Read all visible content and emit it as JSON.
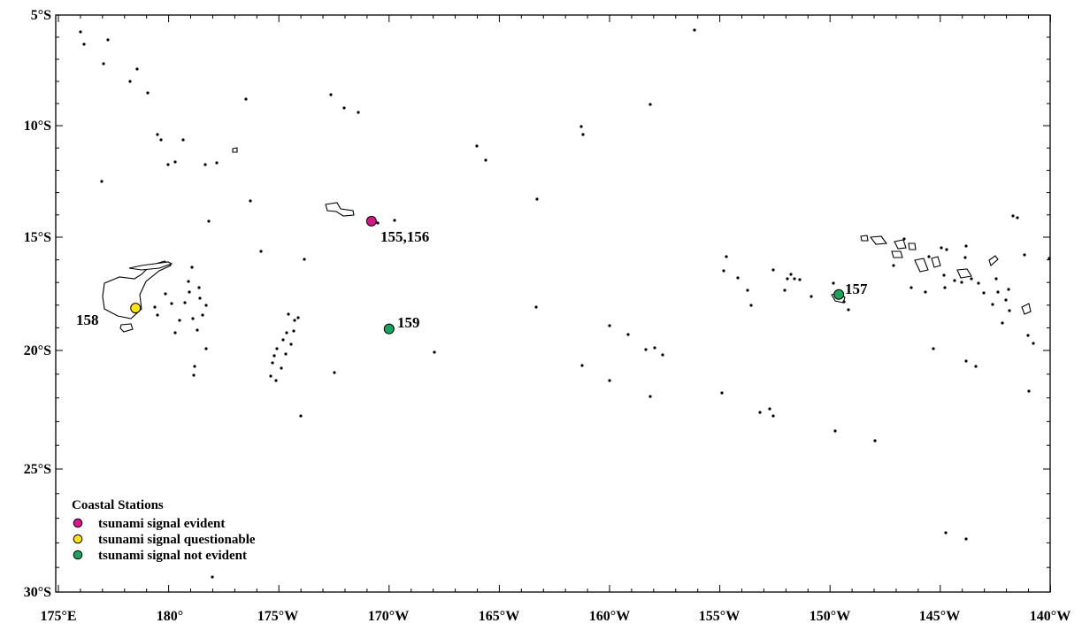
{
  "lat_labels": [
    "5°S",
    "10°S",
    "15°S",
    "20°S",
    "25°S",
    "30°S"
  ],
  "lon_labels": [
    "175°E",
    "180°",
    "175°W",
    "170°W",
    "165°W",
    "160°W",
    "155°W",
    "150°W",
    "145°W",
    "140°W"
  ],
  "stations": [
    {
      "label": "155,156",
      "status": "evident",
      "lon": -170.8,
      "lat": -14.28
    },
    {
      "label": "158",
      "status": "questionable",
      "lon": 178.5,
      "lat": -18.13
    },
    {
      "label": "159",
      "status": "not_evident",
      "lon": -170.0,
      "lat": -19.05
    },
    {
      "label": "157",
      "status": "not_evident",
      "lon": -149.6,
      "lat": -17.53
    }
  ],
  "legend": {
    "title": "Coastal Stations",
    "items": [
      {
        "status": "evident",
        "label": "tsunami signal evident"
      },
      {
        "status": "questionable",
        "label": "tsunami signal questionable"
      },
      {
        "status": "not_evident",
        "label": "tsunami signal not evident"
      }
    ]
  },
  "colors": {
    "evident": "#d6168b",
    "questionable": "#ffe411",
    "not_evident": "#1aa260"
  }
}
